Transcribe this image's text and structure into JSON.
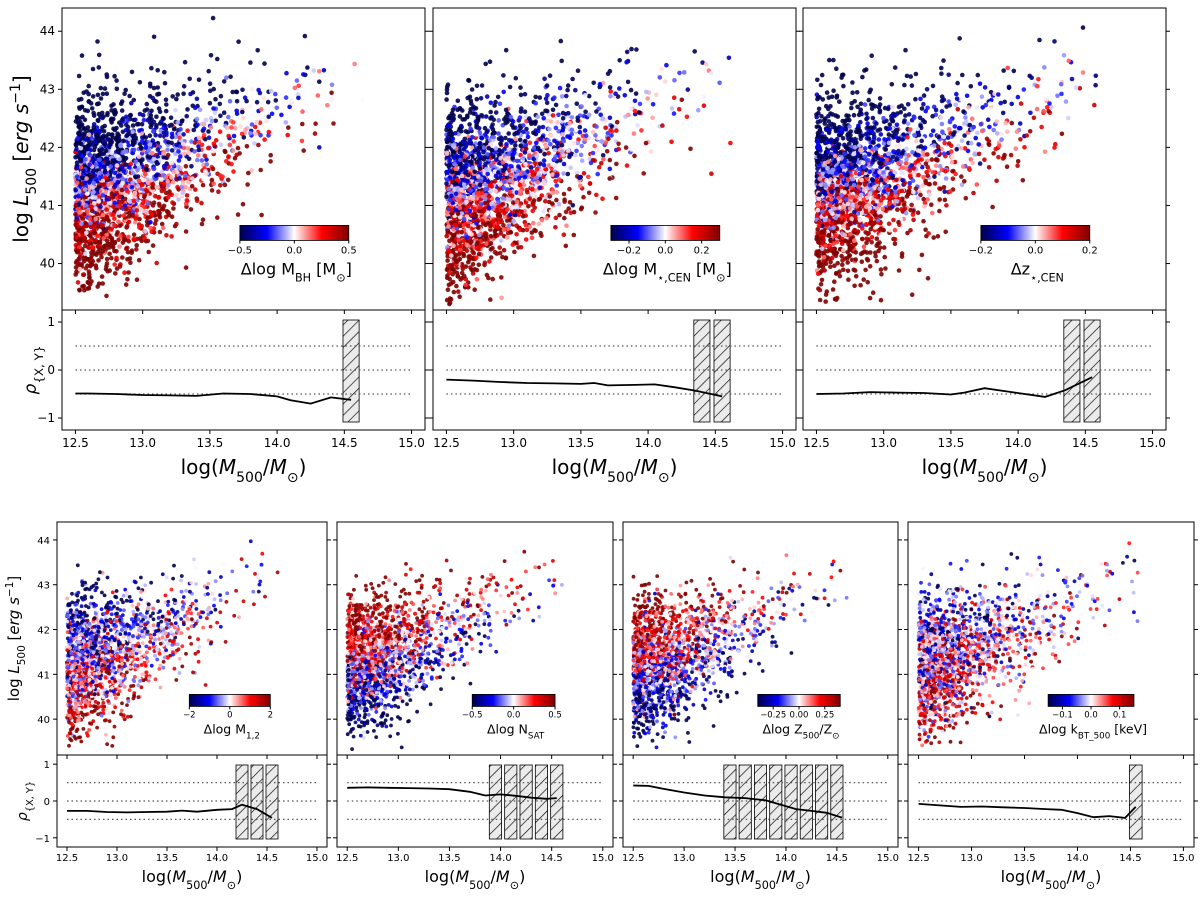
{
  "chart_data": [
    {
      "type": "scatter",
      "panel": "row1-col1",
      "ylabel": "log L_500 [erg s^-1]",
      "xlabel": "log(M_500/M_⊙)",
      "xlim": [
        12.4,
        15.1
      ],
      "ylim": [
        39.2,
        44.4
      ],
      "xticks": [
        "12.5",
        "13.0",
        "13.5",
        "14.0",
        "14.5",
        "15.0"
      ],
      "yticks": [
        "40",
        "41",
        "42",
        "43",
        "44"
      ],
      "colorbar": {
        "label": "Δlog M_BH [M_⊙]",
        "range": [
          -0.5,
          0.5
        ],
        "ticks": [
          "−0.5",
          "0.0",
          "0.5"
        ],
        "cmap": "seismic"
      },
      "trend": {
        "slope": 1.75,
        "intercept": 42.0,
        "width": 0.75,
        "mass_min": 12.5,
        "mass_max": 14.65,
        "color_trend": -0.75
      },
      "correlation": {
        "ylabel": "ρ_{X,Y}",
        "ylim": [
          -1.25,
          1.25
        ],
        "yticks": [
          "−1",
          "0",
          "1"
        ],
        "reference_lines": [
          0.5,
          0.0,
          -0.5
        ],
        "x": [
          12.5,
          12.6,
          12.8,
          13.0,
          13.2,
          13.4,
          13.6,
          13.8,
          14.0,
          14.1,
          14.25,
          14.4,
          14.55
        ],
        "y": [
          -0.49,
          -0.49,
          -0.5,
          -0.52,
          -0.53,
          -0.54,
          -0.49,
          -0.5,
          -0.55,
          -0.63,
          -0.7,
          -0.57,
          -0.62
        ],
        "hatched_bins": [
          14.55
        ]
      }
    },
    {
      "type": "scatter",
      "panel": "row1-col2",
      "xlabel": "log(M_500/M_⊙)",
      "xlim": [
        12.4,
        15.1
      ],
      "ylim": [
        39.2,
        44.4
      ],
      "xticks": [
        "12.5",
        "13.0",
        "13.5",
        "14.0",
        "14.5",
        "15.0"
      ],
      "yticks": [],
      "colorbar": {
        "label": "Δlog M_⋆,CEN [M_⊙]",
        "range": [
          -0.3,
          0.3
        ],
        "ticks": [
          "−0.2",
          "0.0",
          "0.2"
        ],
        "cmap": "seismic"
      },
      "trend": {
        "slope": 1.75,
        "intercept": 42.0,
        "width": 0.75,
        "mass_min": 12.5,
        "mass_max": 14.65,
        "color_trend": -0.55
      },
      "correlation": {
        "ylim": [
          -1.25,
          1.25
        ],
        "yticks": [],
        "reference_lines": [
          0.5,
          0.0,
          -0.5
        ],
        "x": [
          12.5,
          12.7,
          12.9,
          13.1,
          13.3,
          13.5,
          13.6,
          13.7,
          13.9,
          14.05,
          14.2,
          14.35,
          14.55
        ],
        "y": [
          -0.2,
          -0.22,
          -0.25,
          -0.27,
          -0.28,
          -0.29,
          -0.27,
          -0.32,
          -0.31,
          -0.3,
          -0.36,
          -0.43,
          -0.55
        ],
        "hatched_bins": [
          14.4,
          14.55
        ]
      }
    },
    {
      "type": "scatter",
      "panel": "row1-col3",
      "xlabel": "log(M_500/M_⊙)",
      "xlim": [
        12.4,
        15.1
      ],
      "ylim": [
        39.2,
        44.4
      ],
      "xticks": [
        "12.5",
        "13.0",
        "13.5",
        "14.0",
        "14.5",
        "15.0"
      ],
      "yticks": [],
      "colorbar": {
        "label": "Δz_⋆,CEN",
        "range": [
          -0.2,
          0.2
        ],
        "ticks": [
          "−0.2",
          "0.0",
          "0.2"
        ],
        "cmap": "seismic"
      },
      "trend": {
        "slope": 1.75,
        "intercept": 42.0,
        "width": 0.75,
        "mass_min": 12.5,
        "mass_max": 14.65,
        "color_trend": -0.65
      },
      "correlation": {
        "ylim": [
          -1.25,
          1.25
        ],
        "yticks": [],
        "reference_lines": [
          0.5,
          0.0,
          -0.5
        ],
        "x": [
          12.5,
          12.7,
          12.9,
          13.1,
          13.3,
          13.5,
          13.6,
          13.75,
          13.9,
          14.05,
          14.2,
          14.35,
          14.55
        ],
        "y": [
          -0.5,
          -0.49,
          -0.46,
          -0.47,
          -0.48,
          -0.51,
          -0.47,
          -0.38,
          -0.44,
          -0.5,
          -0.56,
          -0.42,
          -0.15
        ],
        "hatched_bins": [
          14.4,
          14.55
        ]
      }
    },
    {
      "type": "scatter",
      "panel": "row2-col1",
      "ylabel": "log L_500 [erg s^-1]",
      "xlabel": "log(M_500/M_⊙)",
      "xlim": [
        12.4,
        15.1
      ],
      "ylim": [
        39.2,
        44.4
      ],
      "xticks": [
        "12.5",
        "13.0",
        "13.5",
        "14.0",
        "14.5",
        "15.0"
      ],
      "yticks": [
        "40",
        "41",
        "42",
        "43",
        "44"
      ],
      "colorbar": {
        "label": "Δlog M_1,2",
        "range": [
          -2,
          2
        ],
        "ticks": [
          "−2",
          "0",
          "2"
        ],
        "cmap": "seismic"
      },
      "trend": {
        "slope": 1.75,
        "intercept": 42.0,
        "width": 0.75,
        "mass_min": 12.5,
        "mass_max": 14.65,
        "color_trend": -0.35
      },
      "correlation": {
        "ylabel": "ρ_{X,Y}",
        "ylim": [
          -1.25,
          1.25
        ],
        "yticks": [
          "−1",
          "0",
          "1"
        ],
        "reference_lines": [
          0.5,
          0.0,
          -0.5
        ],
        "x": [
          12.5,
          12.7,
          12.9,
          13.1,
          13.3,
          13.5,
          13.65,
          13.8,
          14.0,
          14.15,
          14.25,
          14.4,
          14.55
        ],
        "y": [
          -0.27,
          -0.27,
          -0.3,
          -0.31,
          -0.3,
          -0.29,
          -0.26,
          -0.29,
          -0.24,
          -0.22,
          -0.1,
          -0.22,
          -0.46
        ],
        "hatched_bins": [
          14.25,
          14.4,
          14.55
        ]
      }
    },
    {
      "type": "scatter",
      "panel": "row2-col2",
      "xlabel": "log(M_500/M_⊙)",
      "xlim": [
        12.4,
        15.1
      ],
      "ylim": [
        39.2,
        44.4
      ],
      "xticks": [
        "12.5",
        "13.0",
        "13.5",
        "14.0",
        "14.5",
        "15.0"
      ],
      "yticks": [],
      "colorbar": {
        "label": "Δlog N_SAT",
        "range": [
          -0.5,
          0.5
        ],
        "ticks": [
          "−0.5",
          "0.0",
          "0.5"
        ],
        "cmap": "seismic"
      },
      "trend": {
        "slope": 1.75,
        "intercept": 42.0,
        "width": 0.75,
        "mass_min": 12.5,
        "mass_max": 14.65,
        "color_trend": 0.5
      },
      "correlation": {
        "ylim": [
          -1.25,
          1.25
        ],
        "yticks": [],
        "reference_lines": [
          0.5,
          0.0,
          -0.5
        ],
        "x": [
          12.5,
          12.7,
          12.9,
          13.1,
          13.3,
          13.5,
          13.7,
          13.85,
          14.0,
          14.15,
          14.3,
          14.45,
          14.55
        ],
        "y": [
          0.36,
          0.37,
          0.36,
          0.35,
          0.34,
          0.32,
          0.25,
          0.15,
          0.18,
          0.14,
          0.09,
          0.06,
          0.08
        ],
        "hatched_bins": [
          13.95,
          14.1,
          14.25,
          14.4,
          14.55
        ]
      }
    },
    {
      "type": "scatter",
      "panel": "row2-col3",
      "xlabel": "log(M_500/M_⊙)",
      "xlim": [
        12.4,
        15.1
      ],
      "ylim": [
        39.2,
        44.4
      ],
      "xticks": [
        "12.5",
        "13.0",
        "13.5",
        "14.0",
        "14.5",
        "15.0"
      ],
      "yticks": [],
      "colorbar": {
        "label": "Δlog Z_500/Z_⊙",
        "range": [
          -0.4,
          0.4
        ],
        "ticks": [
          "−0.25",
          "0.00",
          "0.25"
        ],
        "cmap": "seismic"
      },
      "trend": {
        "slope": 1.75,
        "intercept": 42.0,
        "width": 0.75,
        "mass_min": 12.5,
        "mass_max": 14.65,
        "color_trend": 0.45
      },
      "correlation": {
        "ylim": [
          -1.25,
          1.25
        ],
        "yticks": [],
        "reference_lines": [
          0.5,
          0.0,
          -0.5
        ],
        "x": [
          12.5,
          12.65,
          12.8,
          13.0,
          13.2,
          13.4,
          13.6,
          13.8,
          13.95,
          14.1,
          14.25,
          14.4,
          14.55
        ],
        "y": [
          0.42,
          0.41,
          0.33,
          0.23,
          0.15,
          0.1,
          0.08,
          0.02,
          -0.1,
          -0.22,
          -0.27,
          -0.32,
          -0.45
        ],
        "hatched_bins": [
          13.45,
          13.6,
          13.75,
          13.9,
          14.05,
          14.2,
          14.35,
          14.5
        ]
      }
    },
    {
      "type": "scatter",
      "panel": "row2-col4",
      "xlabel": "log(M_500/M_⊙)",
      "xlim": [
        12.4,
        15.1
      ],
      "ylim": [
        39.2,
        44.4
      ],
      "xticks": [
        "12.5",
        "13.0",
        "13.5",
        "14.0",
        "14.5",
        "15.0"
      ],
      "yticks": [],
      "colorbar": {
        "label": "Δlog k_BT_500  [keV]",
        "range": [
          -0.15,
          0.15
        ],
        "ticks": [
          "−0.1",
          "0.0",
          "0.1"
        ],
        "cmap": "seismic"
      },
      "trend": {
        "slope": 1.75,
        "intercept": 42.0,
        "width": 0.75,
        "mass_min": 12.5,
        "mass_max": 14.65,
        "color_trend": -0.2
      },
      "correlation": {
        "ylim": [
          -1.25,
          1.25
        ],
        "yticks": [],
        "reference_lines": [
          0.5,
          0.0,
          -0.5
        ],
        "x": [
          12.5,
          12.7,
          12.9,
          13.1,
          13.3,
          13.5,
          13.7,
          13.85,
          14.0,
          14.15,
          14.3,
          14.45,
          14.55
        ],
        "y": [
          -0.08,
          -0.12,
          -0.16,
          -0.15,
          -0.17,
          -0.19,
          -0.22,
          -0.24,
          -0.33,
          -0.44,
          -0.41,
          -0.46,
          -0.16
        ],
        "hatched_bins": [
          14.55
        ]
      }
    }
  ]
}
